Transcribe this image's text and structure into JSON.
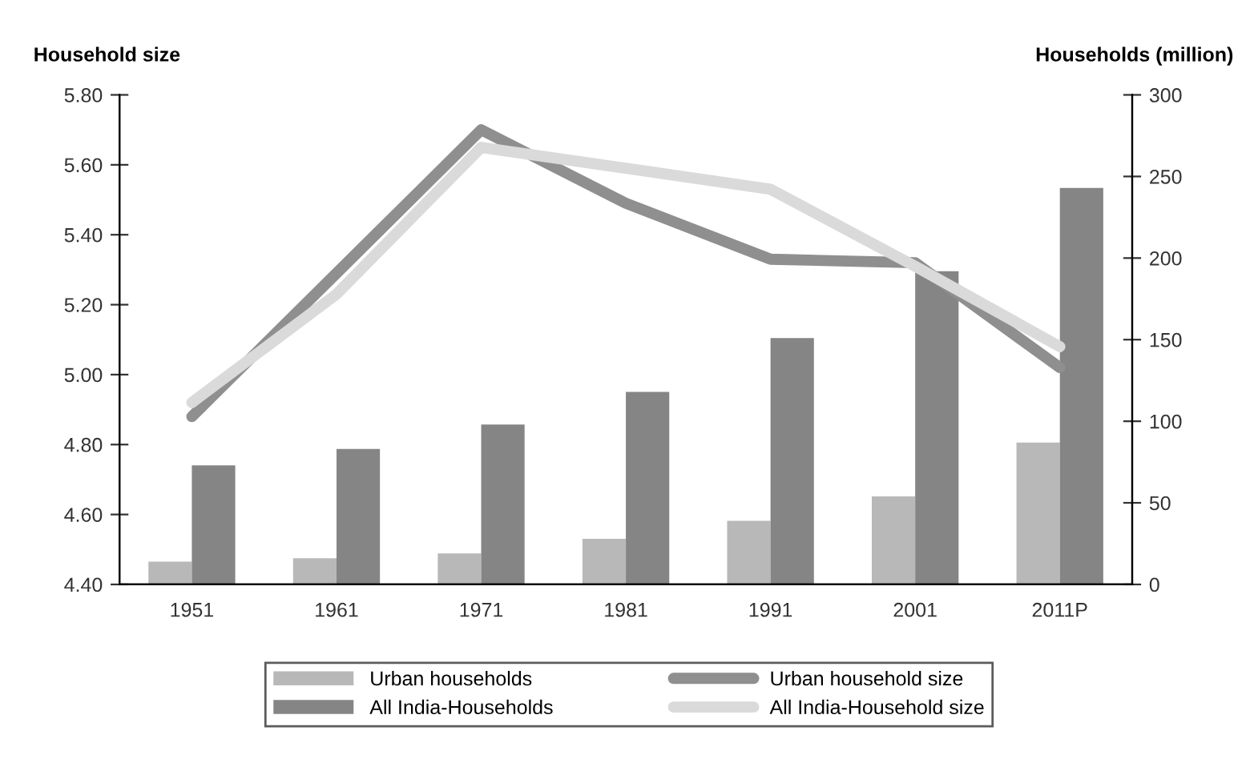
{
  "chart_data": {
    "type": "bar",
    "categories": [
      "1951",
      "1961",
      "1971",
      "1981",
      "1991",
      "2001",
      "2011P"
    ],
    "ylabel": "Household size",
    "y2label": "Households (million)",
    "series": [
      {
        "name": "Urban households",
        "axis": "y2",
        "color": "#b8b8b8",
        "values": [
          14,
          16,
          19,
          28,
          39,
          54,
          87
        ]
      },
      {
        "name": "All India-Households",
        "axis": "y2",
        "color": "#858585",
        "values": [
          73,
          83,
          98,
          118,
          151,
          192,
          243
        ]
      },
      {
        "name": "Urban household size",
        "type": "line",
        "color": "#8f8f8f",
        "values": [
          4.88,
          5.29,
          5.7,
          5.49,
          5.33,
          5.32,
          5.02
        ]
      },
      {
        "name": "All India-Household size",
        "type": "line",
        "color": "#dadada",
        "values": [
          4.92,
          5.23,
          5.65,
          5.59,
          5.53,
          5.31,
          5.08
        ]
      }
    ],
    "ylim": [
      4.4,
      5.8
    ],
    "yticks": [
      {
        "value": 4.4,
        "label": "4.40"
      },
      {
        "value": 4.6,
        "label": "4.60"
      },
      {
        "value": 4.8,
        "label": "4.80"
      },
      {
        "value": 5.0,
        "label": "5.00"
      },
      {
        "value": 5.2,
        "label": "5.20"
      },
      {
        "value": 5.4,
        "label": "5.40"
      },
      {
        "value": 5.6,
        "label": "5.60"
      },
      {
        "value": 5.8,
        "label": "5.80"
      }
    ],
    "y2lim": [
      0,
      300
    ],
    "y2ticks": [
      0,
      50,
      100,
      150,
      200,
      250,
      300
    ],
    "grid": false,
    "legend": "bottom",
    "marker": "none",
    "line_style": "solid"
  }
}
